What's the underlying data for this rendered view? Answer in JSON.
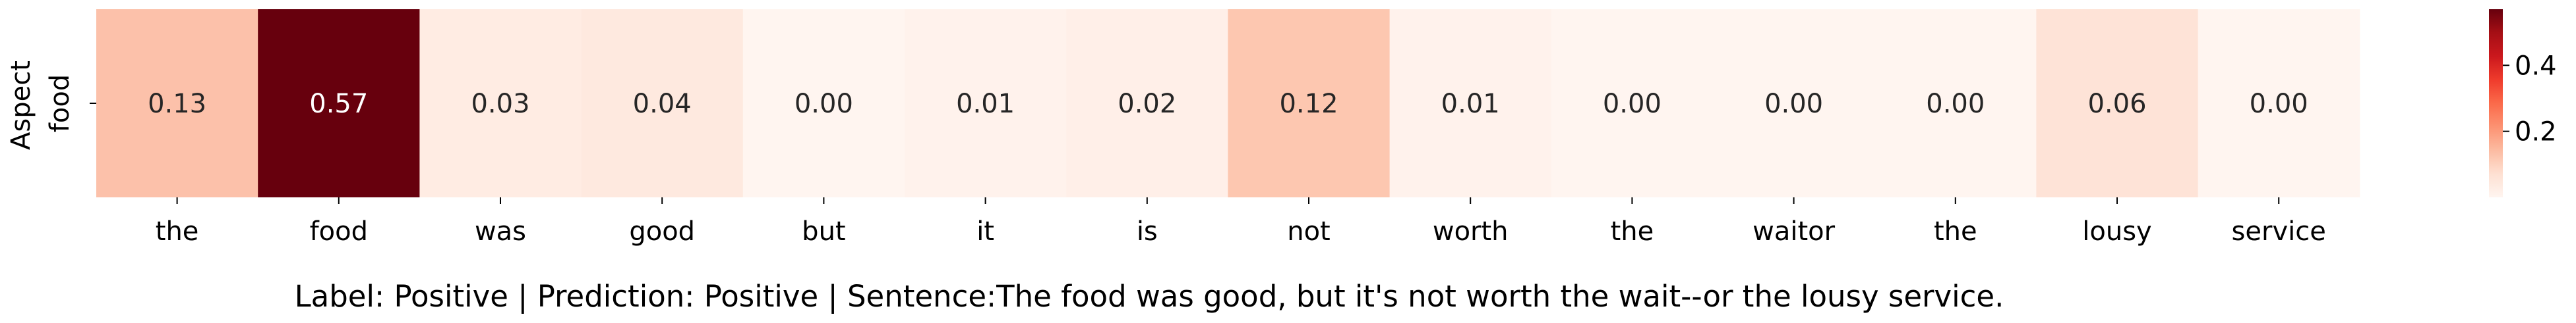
{
  "chart_data": {
    "type": "heatmap",
    "title": "",
    "xlabel": "Label: Positive | Prediction: Positive | Sentence:The food was good, but it's not worth the wait--or the lousy service.",
    "ylabel": "Aspect",
    "row_labels": [
      "food"
    ],
    "x_labels": [
      "the",
      "food",
      "was",
      "good",
      "but",
      "it",
      "is",
      "not",
      "worth",
      "the",
      "waitor",
      "the",
      "lousy",
      "service"
    ],
    "values": [
      [
        0.13,
        0.57,
        0.03,
        0.04,
        0.0,
        0.01,
        0.02,
        0.12,
        0.01,
        0.0,
        0.0,
        0.0,
        0.06,
        0.0
      ]
    ],
    "value_labels": [
      "0.13",
      "0.57",
      "0.03",
      "0.04",
      "0.00",
      "0.01",
      "0.02",
      "0.12",
      "0.01",
      "0.00",
      "0.00",
      "0.00",
      "0.06",
      "0.00"
    ],
    "colormap": "Reds",
    "color_range": [
      0.0,
      0.57
    ],
    "colorbar": {
      "ticks": [
        0.2,
        0.4
      ],
      "tick_labels": [
        "0.2",
        "0.4"
      ],
      "position": "right"
    },
    "grid": false
  }
}
